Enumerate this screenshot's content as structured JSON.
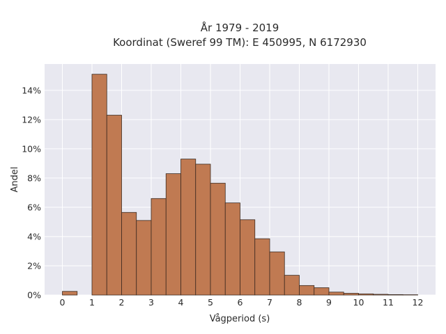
{
  "chart_data": {
    "type": "bar",
    "title_lines": [
      "År 1979 - 2019",
      "Koordinat (Sweref 99 TM): E 450995, N 6172930"
    ],
    "xlabel": "Vågperiod (s)",
    "ylabel": "Andel",
    "xlim": [
      -0.6,
      12.6
    ],
    "ylim": [
      0,
      15.8
    ],
    "bin_width": 0.5,
    "x_ticks": [
      0,
      1,
      2,
      3,
      4,
      5,
      6,
      7,
      8,
      9,
      10,
      11,
      12
    ],
    "x_tick_labels": [
      "0",
      "1",
      "2",
      "3",
      "4",
      "5",
      "6",
      "7",
      "8",
      "9",
      "10",
      "11",
      "12"
    ],
    "y_ticks": [
      0,
      2,
      4,
      6,
      8,
      10,
      12,
      14
    ],
    "y_tick_labels": [
      "0%",
      "2%",
      "4%",
      "6%",
      "8%",
      "10%",
      "12%",
      "14%"
    ],
    "bins_start": [
      0,
      1,
      1.5,
      2,
      2.5,
      3,
      3.5,
      4,
      4.5,
      5,
      5.5,
      6,
      6.5,
      7,
      7.5,
      8,
      8.5,
      9,
      9.5,
      10,
      10.5,
      11,
      11.5
    ],
    "values": [
      0.25,
      15.1,
      12.3,
      5.65,
      5.1,
      6.6,
      8.3,
      9.3,
      8.95,
      7.65,
      6.3,
      5.15,
      3.85,
      2.95,
      1.35,
      0.65,
      0.5,
      0.2,
      0.12,
      0.08,
      0.05,
      0.03,
      0.02
    ],
    "grid": true,
    "bar_color": "#c07a52",
    "bar_edge_color": "#3b2a20",
    "plot_bg": "#e8e8f0",
    "grid_color": "#ffffff"
  }
}
